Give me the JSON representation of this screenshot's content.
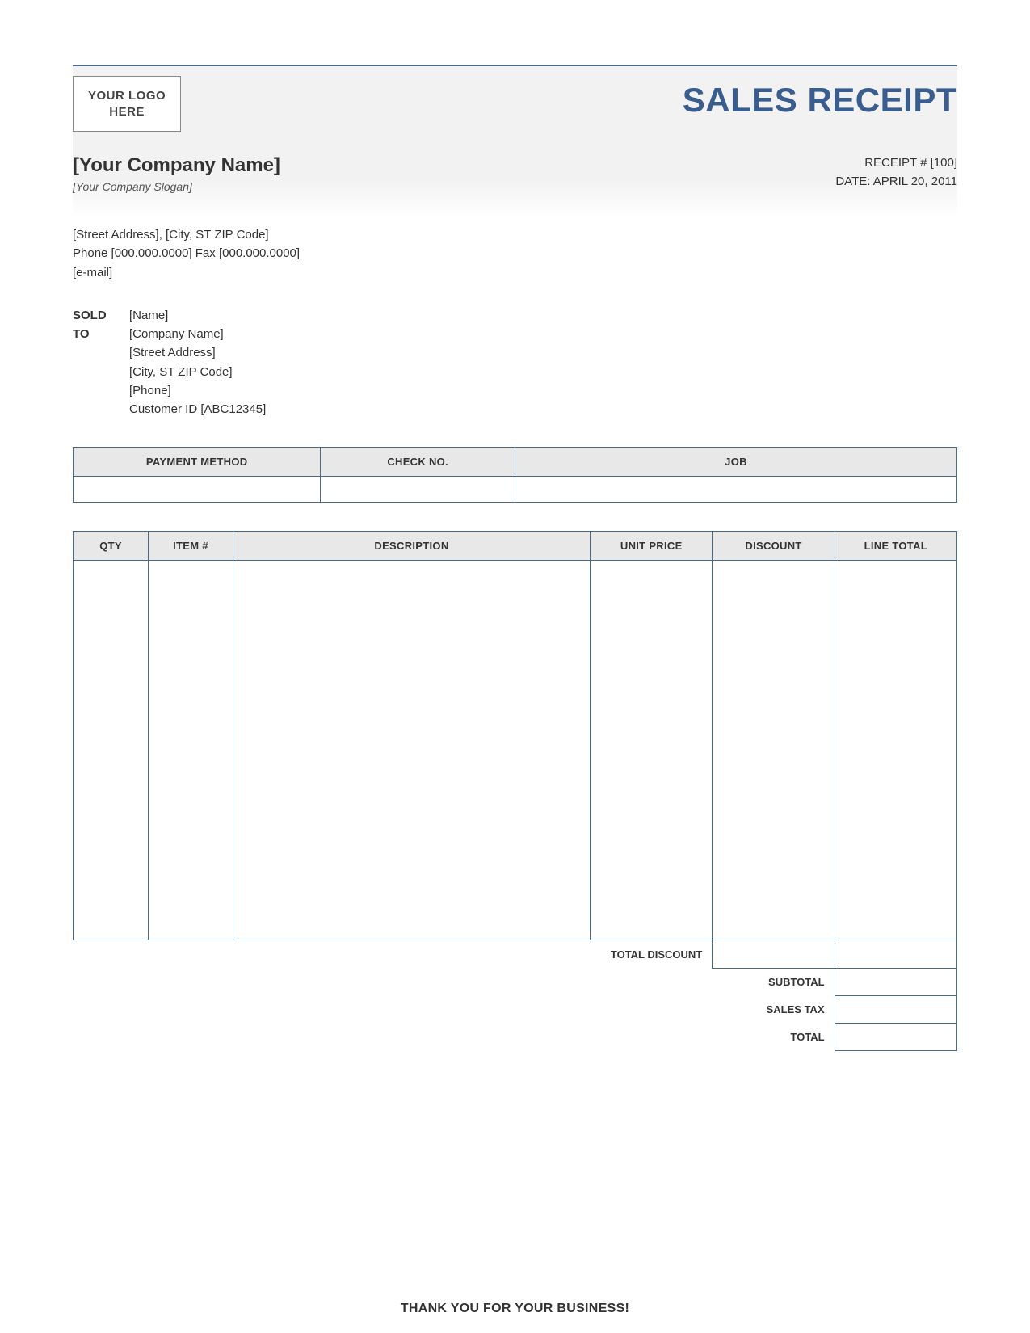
{
  "colors": {
    "border": "#4a6a8a",
    "header_bg": "#e8e8e8",
    "band_bg": "#f2f2f2",
    "title": "#3a5d8f",
    "text": "#333333"
  },
  "logo": {
    "line1": "YOUR LOGO",
    "line2": "HERE"
  },
  "title": "SALES RECEIPT",
  "company": {
    "name": "[Your Company Name]",
    "slogan": "[Your Company Slogan]",
    "address_line": "[Street Address], [City, ST  ZIP Code]",
    "phone_fax": "Phone [000.000.0000] Fax [000.000.0000]",
    "email": "[e-mail]"
  },
  "receipt_meta": {
    "number_label": "RECEIPT #",
    "number": "[100]",
    "date_label": "DATE:",
    "date": "APRIL 20, 2011"
  },
  "sold_to": {
    "label_line1": "SOLD",
    "label_line2": "TO",
    "name": "[Name]",
    "company": "[Company Name]",
    "street": "[Street Address]",
    "city": "[City, ST  ZIP Code]",
    "phone": "[Phone]",
    "customer_id": "Customer ID [ABC12345]"
  },
  "payment_table": {
    "headers": [
      "PAYMENT METHOD",
      "CHECK NO.",
      "JOB"
    ],
    "row": [
      "",
      "",
      ""
    ]
  },
  "items_table": {
    "headers": [
      "QTY",
      "ITEM #",
      "DESCRIPTION",
      "UNIT PRICE",
      "DISCOUNT",
      "LINE TOTAL"
    ]
  },
  "totals": {
    "total_discount_label": "TOTAL DISCOUNT",
    "subtotal_label": "SUBTOTAL",
    "sales_tax_label": "SALES TAX",
    "total_label": "TOTAL",
    "total_discount": "",
    "subtotal": "",
    "sales_tax": "",
    "total": ""
  },
  "footer": "THANK YOU FOR YOUR BUSINESS!"
}
